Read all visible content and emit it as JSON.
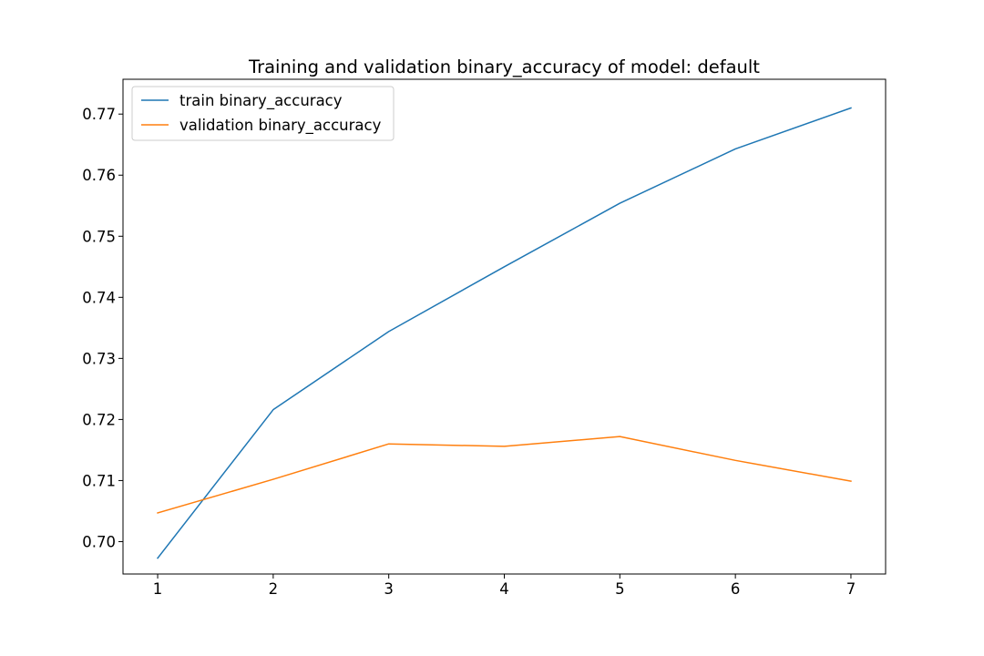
{
  "chart_data": {
    "type": "line",
    "title": "Training and validation binary_accuracy of model: default",
    "xlabel": "",
    "ylabel": "",
    "x": [
      1,
      2,
      3,
      4,
      5,
      6,
      7
    ],
    "x_ticks": [
      "1",
      "2",
      "3",
      "4",
      "5",
      "6",
      "7"
    ],
    "y_ticks": [
      "0.70",
      "0.71",
      "0.72",
      "0.73",
      "0.74",
      "0.75",
      "0.76",
      "0.77"
    ],
    "y_tick_values": [
      0.7,
      0.71,
      0.72,
      0.73,
      0.74,
      0.75,
      0.76,
      0.77
    ],
    "xlim": [
      0.7,
      7.3
    ],
    "ylim": [
      0.6947,
      0.7757
    ],
    "grid": false,
    "legend_position": "upper-left",
    "series": [
      {
        "name": "train binary_accuracy",
        "color": "#1f77b4",
        "values": [
          0.6973,
          0.7216,
          0.7344,
          0.745,
          0.7554,
          0.7643,
          0.771
        ]
      },
      {
        "name": "validation binary_accuracy",
        "color": "#ff7f0e",
        "values": [
          0.7047,
          0.7102,
          0.716,
          0.7156,
          0.7172,
          0.7133,
          0.7099
        ]
      }
    ]
  }
}
